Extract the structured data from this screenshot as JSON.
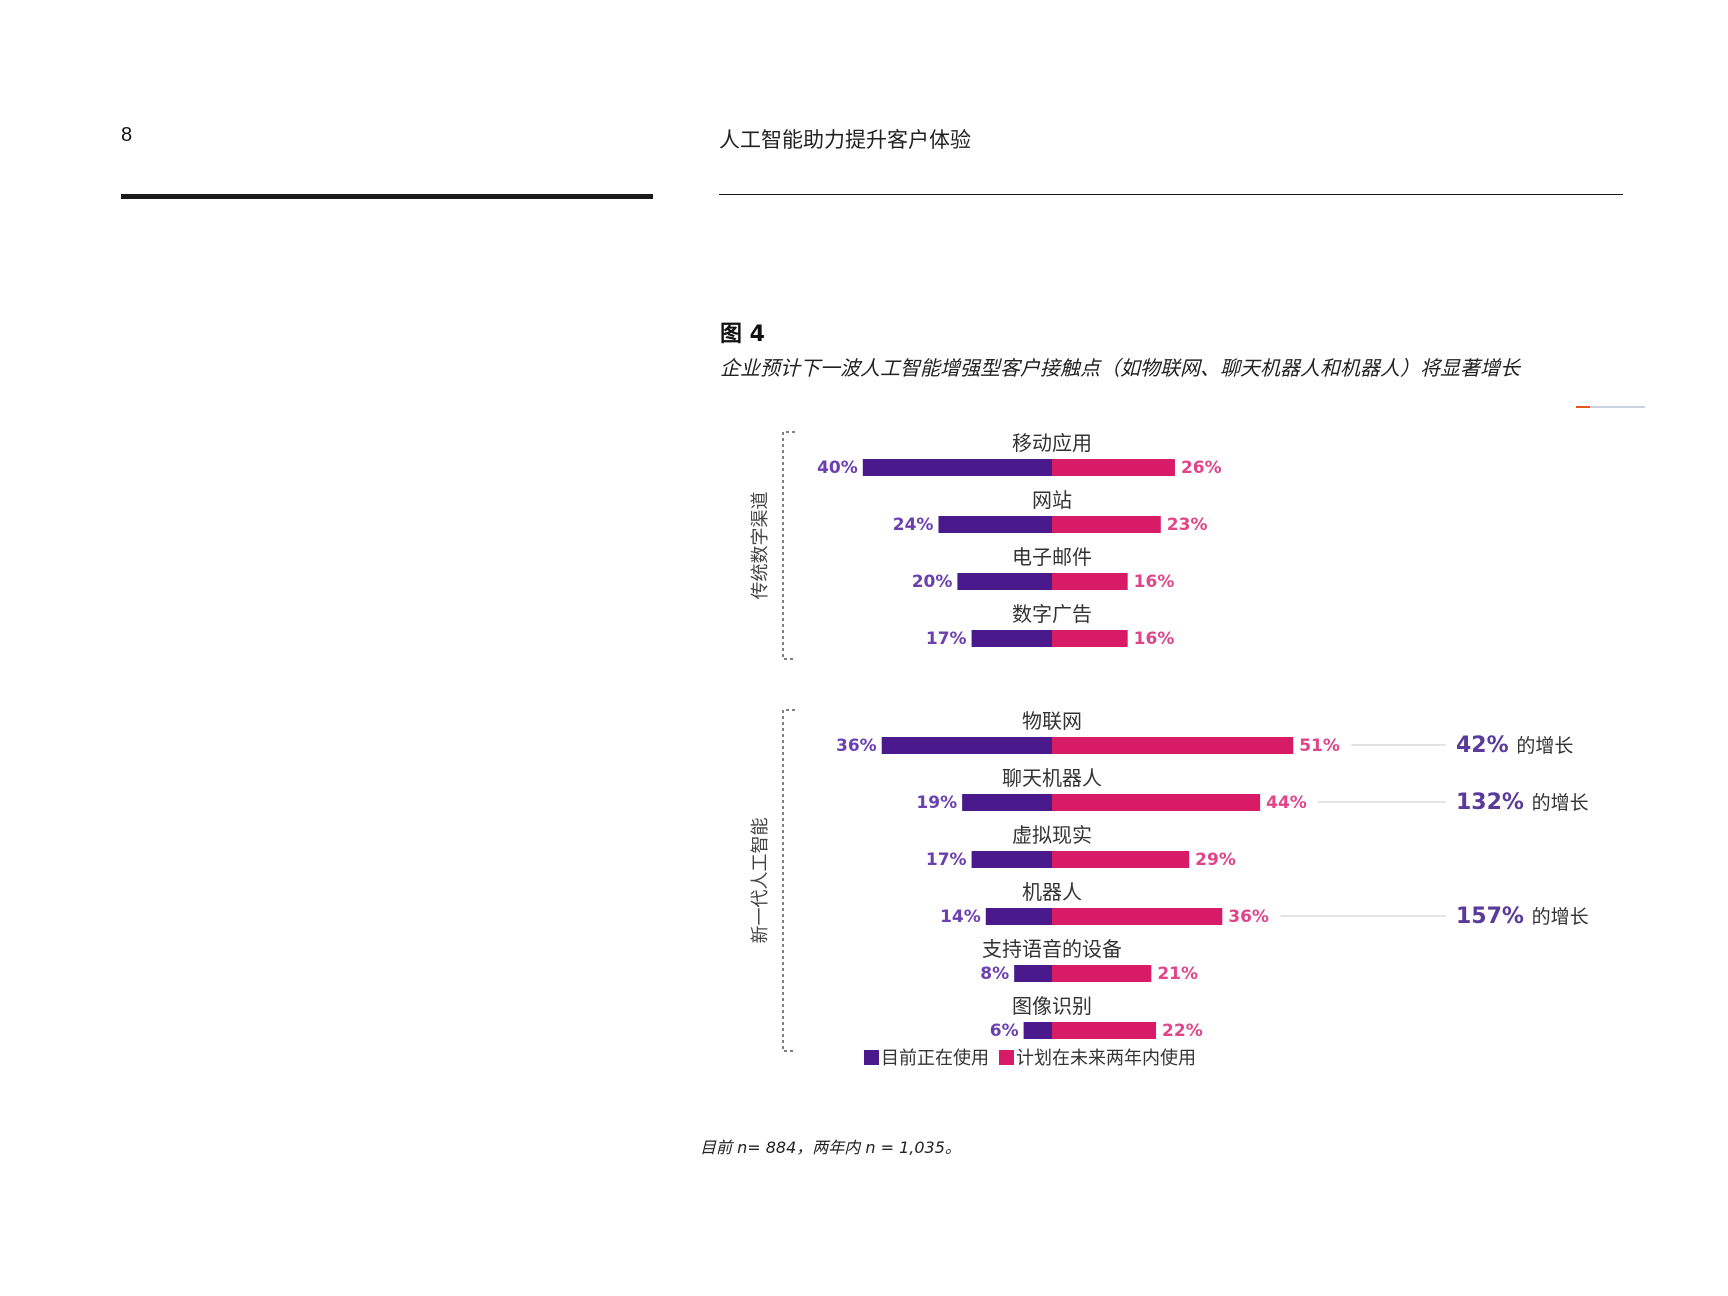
{
  "header": {
    "page_number": "8",
    "running_title": "人工智能助力提升客户体验"
  },
  "figure": {
    "label": "图 4",
    "caption": "企业预计下一波人工智能增强型客户接触点（如物联网、聊天机器人和机器人）将显著增长",
    "footnote": "目前 n= 884，两年内 n = 1,035。"
  },
  "colors": {
    "current": "#4a1a8c",
    "planned": "#d81b66",
    "current_text": "#6b3fb0",
    "planned_text": "#e0458a",
    "growth_text": "#5a3a9a"
  },
  "chart_data": {
    "type": "bar",
    "subtype": "diverging-horizontal",
    "groups": [
      {
        "name": "传统数字渠道",
        "categories": [
          {
            "label": "移动应用",
            "current": 40,
            "planned": 26
          },
          {
            "label": "网站",
            "current": 24,
            "planned": 23
          },
          {
            "label": "电子邮件",
            "current": 20,
            "planned": 16
          },
          {
            "label": "数字广告",
            "current": 17,
            "planned": 16
          }
        ]
      },
      {
        "name": "新一代人工智能",
        "categories": [
          {
            "label": "物联网",
            "current": 36,
            "planned": 51,
            "growth": "42%",
            "growth_suffix": "的增长"
          },
          {
            "label": "聊天机器人",
            "current": 19,
            "planned": 44,
            "growth": "132%",
            "growth_suffix": "的增长"
          },
          {
            "label": "虚拟现实",
            "current": 17,
            "planned": 29
          },
          {
            "label": "机器人",
            "current": 14,
            "planned": 36,
            "growth": "157%",
            "growth_suffix": "的增长"
          },
          {
            "label": "支持语音的设备",
            "current": 8,
            "planned": 21
          },
          {
            "label": "图像识别",
            "current": 6,
            "planned": 22
          }
        ]
      }
    ],
    "series": [
      {
        "key": "current",
        "name": "目前正在使用"
      },
      {
        "key": "planned",
        "name": "计划在未来两年内使用"
      }
    ],
    "unit": "%",
    "legend_position": "bottom"
  }
}
